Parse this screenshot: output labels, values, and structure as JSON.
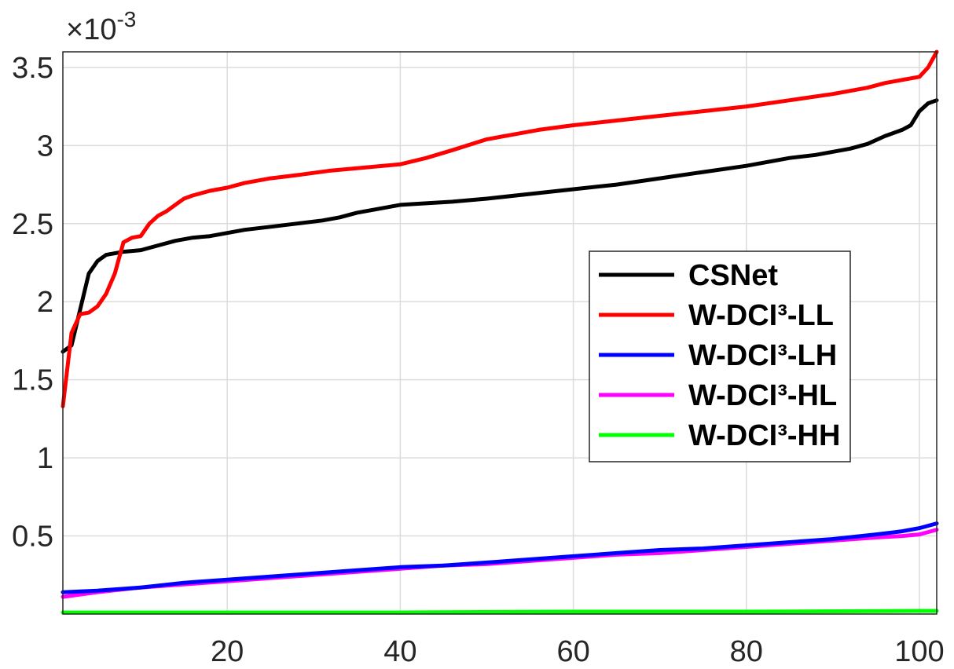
{
  "chart_data": {
    "type": "line",
    "title": "",
    "xlabel": "",
    "ylabel": "",
    "y_multiplier_label": {
      "prefix": "×10",
      "exponent": "-3"
    },
    "xlim": [
      1,
      102
    ],
    "ylim": [
      0,
      3.6
    ],
    "x_ticks": [
      20,
      40,
      60,
      80,
      100
    ],
    "x_tick_labels": [
      "20",
      "40",
      "60",
      "80",
      "100"
    ],
    "y_ticks": [
      0.5,
      1,
      1.5,
      2,
      2.5,
      3,
      3.5
    ],
    "y_tick_labels": [
      "0.5",
      "1",
      "1.5",
      "2",
      "2.5",
      "3",
      "3.5"
    ],
    "grid": true,
    "legend_position": "right, vertically centered",
    "series": [
      {
        "name": "CSNet",
        "color": "#000000",
        "points": [
          [
            1,
            1.68
          ],
          [
            2,
            1.72
          ],
          [
            3,
            1.95
          ],
          [
            4,
            2.18
          ],
          [
            5,
            2.26
          ],
          [
            6,
            2.3
          ],
          [
            7,
            2.31
          ],
          [
            8,
            2.32
          ],
          [
            10,
            2.33
          ],
          [
            12,
            2.36
          ],
          [
            14,
            2.39
          ],
          [
            16,
            2.41
          ],
          [
            18,
            2.42
          ],
          [
            20,
            2.44
          ],
          [
            22,
            2.46
          ],
          [
            25,
            2.48
          ],
          [
            28,
            2.5
          ],
          [
            31,
            2.52
          ],
          [
            33,
            2.54
          ],
          [
            35,
            2.57
          ],
          [
            37,
            2.59
          ],
          [
            40,
            2.62
          ],
          [
            43,
            2.63
          ],
          [
            46,
            2.64
          ],
          [
            50,
            2.66
          ],
          [
            55,
            2.69
          ],
          [
            60,
            2.72
          ],
          [
            65,
            2.75
          ],
          [
            70,
            2.79
          ],
          [
            75,
            2.83
          ],
          [
            80,
            2.87
          ],
          [
            85,
            2.92
          ],
          [
            88,
            2.94
          ],
          [
            92,
            2.98
          ],
          [
            94,
            3.01
          ],
          [
            96,
            3.06
          ],
          [
            98,
            3.1
          ],
          [
            99,
            3.13
          ],
          [
            100,
            3.22
          ],
          [
            101,
            3.27
          ],
          [
            102,
            3.29
          ]
        ]
      },
      {
        "name": "W-DCI³-LL",
        "color": "#ff0000",
        "points": [
          [
            1,
            1.33
          ],
          [
            2,
            1.8
          ],
          [
            3,
            1.92
          ],
          [
            4,
            1.93
          ],
          [
            5,
            1.97
          ],
          [
            6,
            2.05
          ],
          [
            7,
            2.18
          ],
          [
            8,
            2.38
          ],
          [
            9,
            2.41
          ],
          [
            10,
            2.42
          ],
          [
            11,
            2.5
          ],
          [
            12,
            2.55
          ],
          [
            13,
            2.58
          ],
          [
            14,
            2.62
          ],
          [
            15,
            2.66
          ],
          [
            16,
            2.68
          ],
          [
            18,
            2.71
          ],
          [
            20,
            2.73
          ],
          [
            22,
            2.76
          ],
          [
            25,
            2.79
          ],
          [
            28,
            2.81
          ],
          [
            32,
            2.84
          ],
          [
            36,
            2.86
          ],
          [
            40,
            2.88
          ],
          [
            43,
            2.92
          ],
          [
            46,
            2.97
          ],
          [
            50,
            3.04
          ],
          [
            53,
            3.07
          ],
          [
            56,
            3.1
          ],
          [
            60,
            3.13
          ],
          [
            65,
            3.16
          ],
          [
            70,
            3.19
          ],
          [
            75,
            3.22
          ],
          [
            80,
            3.25
          ],
          [
            85,
            3.29
          ],
          [
            90,
            3.33
          ],
          [
            94,
            3.37
          ],
          [
            96,
            3.4
          ],
          [
            99,
            3.43
          ],
          [
            100,
            3.44
          ],
          [
            101,
            3.5
          ],
          [
            102,
            3.6
          ]
        ]
      },
      {
        "name": "W-DCI³-LH",
        "color": "#0000ff",
        "points": [
          [
            1,
            0.14
          ],
          [
            5,
            0.15
          ],
          [
            10,
            0.17
          ],
          [
            15,
            0.2
          ],
          [
            20,
            0.22
          ],
          [
            25,
            0.24
          ],
          [
            30,
            0.26
          ],
          [
            35,
            0.28
          ],
          [
            40,
            0.3
          ],
          [
            45,
            0.31
          ],
          [
            50,
            0.33
          ],
          [
            55,
            0.35
          ],
          [
            60,
            0.37
          ],
          [
            65,
            0.39
          ],
          [
            70,
            0.41
          ],
          [
            75,
            0.42
          ],
          [
            80,
            0.44
          ],
          [
            85,
            0.46
          ],
          [
            90,
            0.48
          ],
          [
            95,
            0.51
          ],
          [
            98,
            0.53
          ],
          [
            100,
            0.55
          ],
          [
            102,
            0.58
          ]
        ]
      },
      {
        "name": "W-DCI³-HL",
        "color": "#ff00ff",
        "points": [
          [
            1,
            0.11
          ],
          [
            5,
            0.14
          ],
          [
            10,
            0.17
          ],
          [
            15,
            0.19
          ],
          [
            20,
            0.21
          ],
          [
            25,
            0.23
          ],
          [
            30,
            0.25
          ],
          [
            35,
            0.27
          ],
          [
            40,
            0.29
          ],
          [
            45,
            0.31
          ],
          [
            50,
            0.32
          ],
          [
            55,
            0.34
          ],
          [
            60,
            0.36
          ],
          [
            65,
            0.38
          ],
          [
            70,
            0.39
          ],
          [
            75,
            0.41
          ],
          [
            80,
            0.43
          ],
          [
            85,
            0.45
          ],
          [
            90,
            0.47
          ],
          [
            95,
            0.49
          ],
          [
            98,
            0.5
          ],
          [
            100,
            0.51
          ],
          [
            102,
            0.54
          ]
        ]
      },
      {
        "name": "W-DCI³-HH",
        "color": "#00ff00",
        "points": [
          [
            1,
            0.01
          ],
          [
            20,
            0.01
          ],
          [
            40,
            0.01
          ],
          [
            60,
            0.015
          ],
          [
            80,
            0.015
          ],
          [
            100,
            0.02
          ],
          [
            102,
            0.02
          ]
        ]
      }
    ]
  }
}
